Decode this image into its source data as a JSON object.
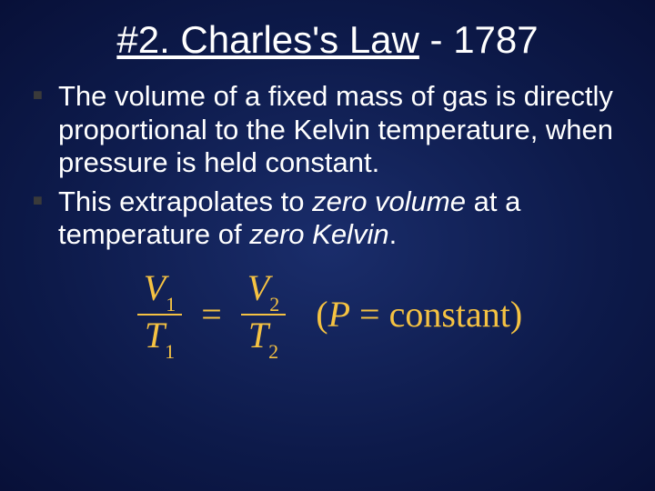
{
  "background": {
    "center_color": "#1a2d6b",
    "edge_color": "#081038",
    "type": "radial-gradient"
  },
  "title": {
    "underlined_part": "#2. Charles's Law",
    "rest_part": " - 1787",
    "color": "#ffffff",
    "fontsize": 42
  },
  "bullets": [
    {
      "text": "The volume of a fixed mass of gas is directly proportional to the Kelvin temperature, when pressure is held constant."
    },
    {
      "prefix": "This extrapolates to ",
      "italic1": "zero volume",
      "middle": " at a temperature of ",
      "italic2": "zero Kelvin",
      "suffix": "."
    }
  ],
  "bullet_style": {
    "marker_color": "#3a3a3a",
    "text_color": "#ffffff",
    "fontsize": 31
  },
  "equation": {
    "color": "#f5c242",
    "fontsize": 40,
    "lhs_num_var": "V",
    "lhs_num_sub": "1",
    "lhs_den_var": "T",
    "lhs_den_sub": "1",
    "eq_sign": "=",
    "rhs_num_var": "V",
    "rhs_num_sub": "2",
    "rhs_den_var": "T",
    "rhs_den_sub": "2",
    "annotation_open": "(",
    "annotation_var": "P",
    "annotation_eq": " = ",
    "annotation_word": "constant",
    "annotation_close": ")"
  }
}
